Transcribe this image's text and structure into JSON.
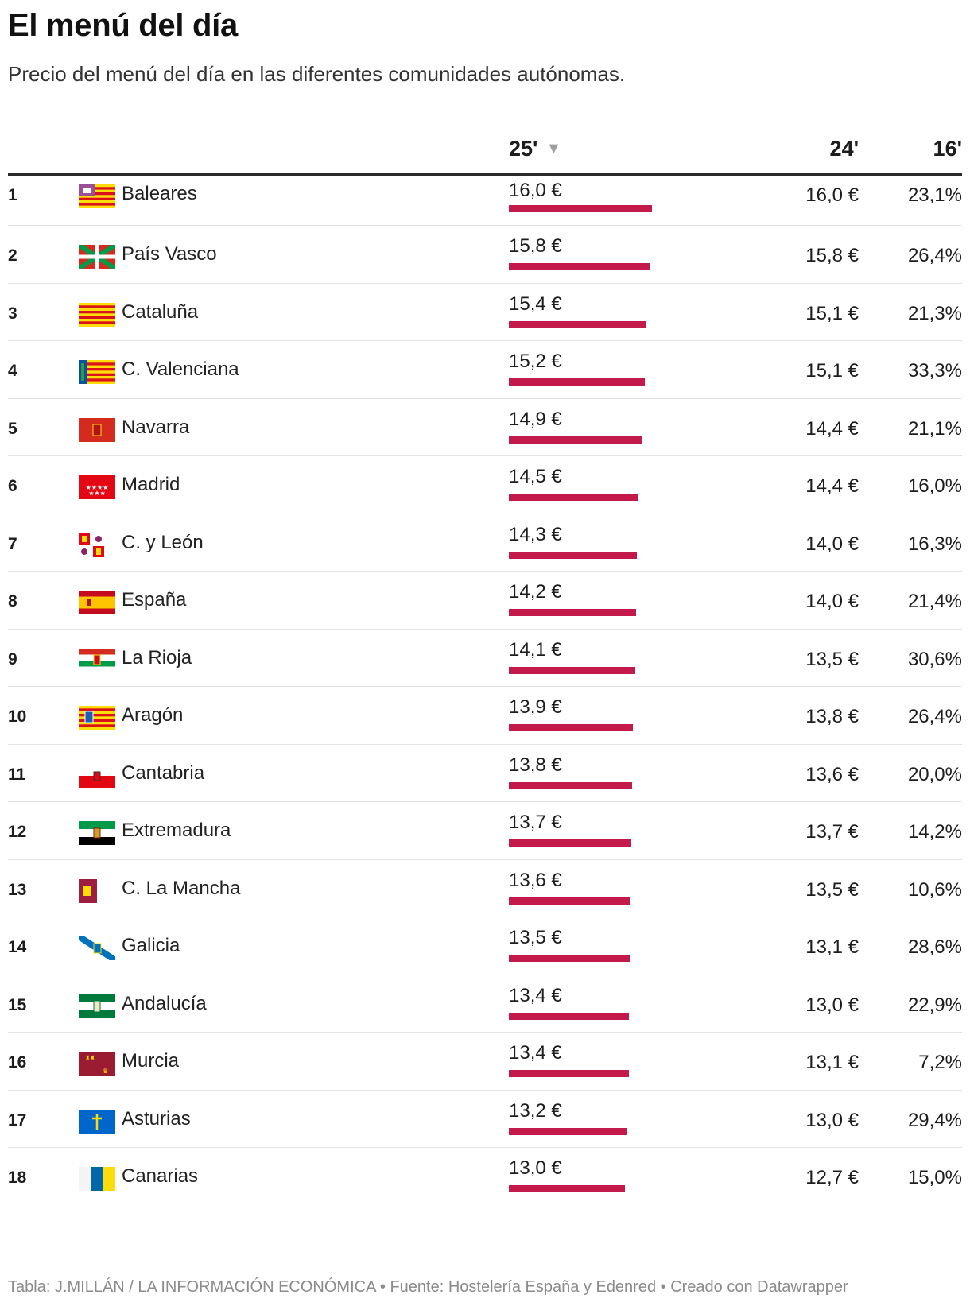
{
  "title": "El menú del día",
  "subtitle": "Precio del menú del día en las diferentes comunidades autónomas.",
  "columns": {
    "c25": "25'",
    "c24": "24'",
    "c16": "16'",
    "sort_icon": "sort-descending-icon"
  },
  "footer": "Tabla: J.MILLÁN / LA INFORMACIÓN ECONÓMICA • Fuente: Hostelería España y Edenred • Creado con Datawrapper",
  "colors": {
    "bar": "#c4194b",
    "rule": "#2a2a2a"
  },
  "chart_data": {
    "type": "table",
    "title": "El menú del día",
    "subtitle": "Precio del menú del día en las diferentes comunidades autónomas.",
    "bar_column": "25'",
    "bar_range": [
      0,
      16.0
    ],
    "rows": [
      {
        "rank": "1",
        "name": "Baleares",
        "flag": "baleares",
        "bar": 16.0,
        "v25": "16,0 €",
        "v24": "16,0 €",
        "v16": "23,1%"
      },
      {
        "rank": "2",
        "name": "País Vasco",
        "flag": "pais-vasco",
        "bar": 15.8,
        "v25": "15,8 €",
        "v24": "15,8 €",
        "v16": "26,4%"
      },
      {
        "rank": "3",
        "name": "Cataluña",
        "flag": "cataluna",
        "bar": 15.4,
        "v25": "15,4 €",
        "v24": "15,1 €",
        "v16": "21,3%"
      },
      {
        "rank": "4",
        "name": "C. Valenciana",
        "flag": "valenciana",
        "bar": 15.2,
        "v25": "15,2 €",
        "v24": "15,1 €",
        "v16": "33,3%"
      },
      {
        "rank": "5",
        "name": "Navarra",
        "flag": "navarra",
        "bar": 14.9,
        "v25": "14,9 €",
        "v24": "14,4 €",
        "v16": "21,1%"
      },
      {
        "rank": "6",
        "name": "Madrid",
        "flag": "madrid",
        "bar": 14.5,
        "v25": "14,5 €",
        "v24": "14,4 €",
        "v16": "16,0%"
      },
      {
        "rank": "7",
        "name": "C. y León",
        "flag": "castilla-leon",
        "bar": 14.3,
        "v25": "14,3 €",
        "v24": "14,0 €",
        "v16": "16,3%"
      },
      {
        "rank": "8",
        "name": "España",
        "flag": "espana",
        "bar": 14.2,
        "v25": "14,2 €",
        "v24": "14,0 €",
        "v16": "21,4%"
      },
      {
        "rank": "9",
        "name": "La Rioja",
        "flag": "la-rioja",
        "bar": 14.1,
        "v25": "14,1 €",
        "v24": "13,5 €",
        "v16": "30,6%"
      },
      {
        "rank": "10",
        "name": "Aragón",
        "flag": "aragon",
        "bar": 13.9,
        "v25": "13,9 €",
        "v24": "13,8 €",
        "v16": "26,4%"
      },
      {
        "rank": "11",
        "name": "Cantabria",
        "flag": "cantabria",
        "bar": 13.8,
        "v25": "13,8 €",
        "v24": "13,6 €",
        "v16": "20,0%"
      },
      {
        "rank": "12",
        "name": "Extremadura",
        "flag": "extremadura",
        "bar": 13.7,
        "v25": "13,7 €",
        "v24": "13,7 €",
        "v16": "14,2%"
      },
      {
        "rank": "13",
        "name": "C. La Mancha",
        "flag": "castilla-la-mancha",
        "bar": 13.6,
        "v25": "13,6 €",
        "v24": "13,5 €",
        "v16": "10,6%"
      },
      {
        "rank": "14",
        "name": "Galicia",
        "flag": "galicia",
        "bar": 13.5,
        "v25": "13,5 €",
        "v24": "13,1 €",
        "v16": "28,6%"
      },
      {
        "rank": "15",
        "name": "Andalucía",
        "flag": "andalucia",
        "bar": 13.4,
        "v25": "13,4 €",
        "v24": "13,0 €",
        "v16": "22,9%"
      },
      {
        "rank": "16",
        "name": "Murcia",
        "flag": "murcia",
        "bar": 13.4,
        "v25": "13,4 €",
        "v24": "13,1 €",
        "v16": "7,2%"
      },
      {
        "rank": "17",
        "name": "Asturias",
        "flag": "asturias",
        "bar": 13.2,
        "v25": "13,2 €",
        "v24": "13,0 €",
        "v16": "29,4%"
      },
      {
        "rank": "18",
        "name": "Canarias",
        "flag": "canarias",
        "bar": 13.0,
        "v25": "13,0 €",
        "v24": "12,7 €",
        "v16": "15,0%"
      }
    ]
  }
}
